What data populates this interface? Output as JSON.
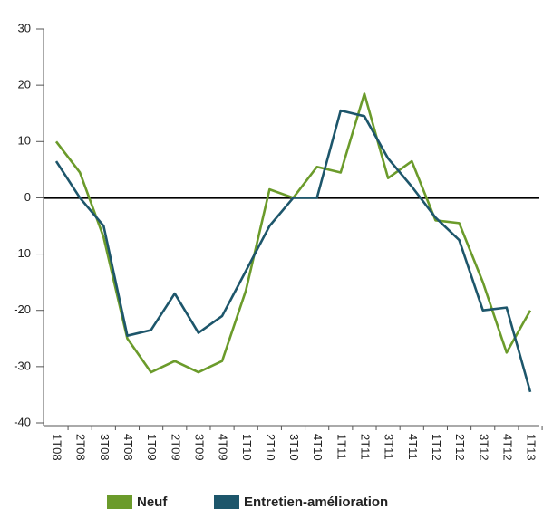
{
  "chart_data": {
    "type": "line",
    "categories": [
      "1T08",
      "2T08",
      "3T08",
      "4T08",
      "1T09",
      "2T09",
      "3T09",
      "4T09",
      "1T10",
      "2T10",
      "3T10",
      "4T10",
      "1T11",
      "2T11",
      "3T11",
      "4T11",
      "1T12",
      "2T12",
      "3T12",
      "4T12",
      "1T13"
    ],
    "series": [
      {
        "name": "Neuf",
        "color": "#6b9b2b",
        "values": [
          10,
          4.5,
          -7,
          -25,
          -31,
          -29,
          -31,
          -29,
          -16.5,
          1.5,
          0,
          5.5,
          4.5,
          18.5,
          3.5,
          6.5,
          -4,
          -4.5,
          -15,
          -27.5,
          -20
        ]
      },
      {
        "name": "Entretien-amélioration",
        "color": "#1d566b",
        "values": [
          6.5,
          0,
          -5,
          -24.5,
          -23.5,
          -17,
          -24,
          -21,
          -13,
          -5,
          0,
          0,
          15.5,
          14.5,
          7,
          2,
          -3.5,
          -7.5,
          -20,
          -19.5,
          -34.5
        ]
      }
    ],
    "ylim": [
      -40,
      30
    ],
    "yticks": [
      -40,
      -30,
      -20,
      -10,
      0,
      10,
      20,
      30
    ],
    "grid": false,
    "legend": "bottom"
  }
}
